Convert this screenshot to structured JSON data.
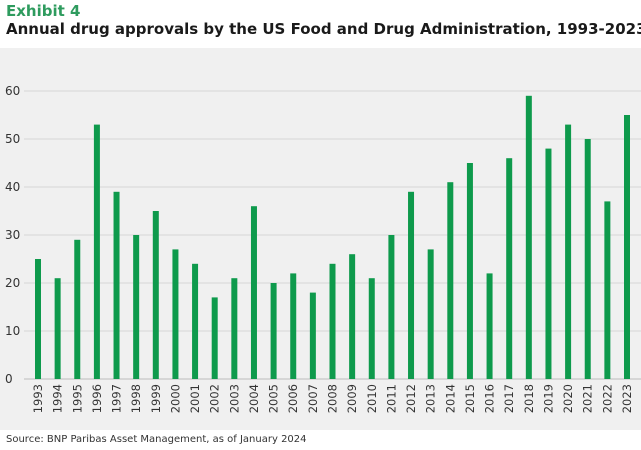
{
  "header": {
    "exhibit_label": "Exhibit 4",
    "title": "Annual drug approvals by the US Food and Drug Administration, 1993-2023"
  },
  "source": "Source: BNP Paribas Asset Management, as of January 2024",
  "colors": {
    "bar": "#0e9a4c",
    "grid": "#d6d6d6",
    "background": "#f0f0f0",
    "accent": "#2e9b5e"
  },
  "chart_data": {
    "type": "bar",
    "title": "Annual drug approvals by the US Food and Drug Administration, 1993-2023",
    "xlabel": "",
    "ylabel": "",
    "ylim": [
      0,
      60
    ],
    "yticks": [
      0,
      10,
      20,
      30,
      40,
      50,
      60
    ],
    "grid": true,
    "categories": [
      "1993",
      "1994",
      "1995",
      "1996",
      "1997",
      "1998",
      "1999",
      "2000",
      "2001",
      "2002",
      "2003",
      "2004",
      "2005",
      "2006",
      "2007",
      "2008",
      "2009",
      "2010",
      "2011",
      "2012",
      "2013",
      "2014",
      "2015",
      "2016",
      "2017",
      "2018",
      "2019",
      "2020",
      "2021",
      "2022",
      "2023"
    ],
    "values": [
      25,
      21,
      29,
      53,
      39,
      30,
      35,
      27,
      24,
      17,
      21,
      36,
      20,
      22,
      18,
      24,
      26,
      21,
      30,
      39,
      27,
      41,
      45,
      22,
      46,
      59,
      48,
      53,
      50,
      37,
      55
    ]
  }
}
